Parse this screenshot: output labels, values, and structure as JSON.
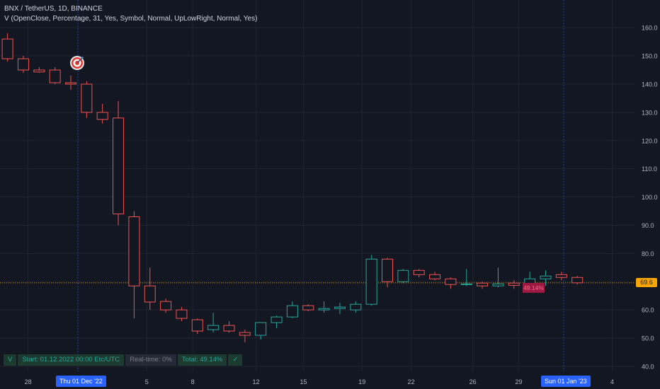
{
  "header": {
    "symbol_line": "BNX / TetherUS, 1D, BINANCE",
    "indicator_line": "V (OpenClose, Percentage, 31, Yes, Symbol, Normal, UpLowRight, Normal, Yes)"
  },
  "colors": {
    "background": "#131722",
    "up": "#26a69a",
    "down": "#ef5350",
    "price_line": "#f7a600",
    "grid": "#1f2430"
  },
  "price_label": "69.6",
  "percent_label": "49.14%",
  "status_bar": {
    "mode": "V",
    "start": "Start: 01.12.2022 00:00 Etc/UTC",
    "realtime": "Real-time: 0%",
    "total": "Total: 49.14%",
    "check": "✓"
  },
  "date_tags": {
    "left": "Thu 01 Dec '22",
    "right": "Sun 01 Jan '23"
  },
  "icons": [
    "target-icon",
    "check-icon"
  ],
  "chart_data": {
    "type": "candlestick",
    "title": "BNX / TetherUS, 1D, BINANCE",
    "ylim": [
      38,
      165
    ],
    "y_ticks": [
      40,
      50,
      60,
      70,
      80,
      90,
      100,
      110,
      120,
      130,
      140,
      150,
      160
    ],
    "x_ticks": [
      "28",
      "5",
      "8",
      "12",
      "15",
      "19",
      "22",
      "26",
      "29",
      "4"
    ],
    "grid": true,
    "series": [
      {
        "name": "BNX / TetherUS",
        "candles": [
          {
            "o": 156,
            "h": 158,
            "l": 148,
            "c": 149
          },
          {
            "o": 149,
            "h": 150,
            "l": 144,
            "c": 145
          },
          {
            "o": 145,
            "h": 146,
            "l": 144,
            "c": 144.3
          },
          {
            "o": 145,
            "h": 146,
            "l": 140,
            "c": 140.5
          },
          {
            "o": 140.5,
            "h": 143,
            "l": 138,
            "c": 140
          },
          {
            "o": 140,
            "h": 141,
            "l": 128,
            "c": 130
          },
          {
            "o": 130,
            "h": 133,
            "l": 126,
            "c": 127.5
          },
          {
            "o": 128,
            "h": 134,
            "l": 90,
            "c": 94
          },
          {
            "o": 93,
            "h": 95,
            "l": 57,
            "c": 68.5
          },
          {
            "o": 68.5,
            "h": 75,
            "l": 60,
            "c": 62.8
          },
          {
            "o": 63,
            "h": 64,
            "l": 59,
            "c": 60
          },
          {
            "o": 60,
            "h": 61,
            "l": 56,
            "c": 57
          },
          {
            "o": 56.5,
            "h": 57,
            "l": 51.5,
            "c": 52.5
          },
          {
            "o": 53,
            "h": 59,
            "l": 52,
            "c": 54.5
          },
          {
            "o": 54.5,
            "h": 56,
            "l": 52,
            "c": 52.5
          },
          {
            "o": 52,
            "h": 53,
            "l": 48.5,
            "c": 51
          },
          {
            "o": 51,
            "h": 55,
            "l": 49.5,
            "c": 55.5
          },
          {
            "o": 55.5,
            "h": 58,
            "l": 53.5,
            "c": 57.5
          },
          {
            "o": 57.5,
            "h": 63,
            "l": 57,
            "c": 61.5
          },
          {
            "o": 61.5,
            "h": 62,
            "l": 59.5,
            "c": 60
          },
          {
            "o": 60,
            "h": 63,
            "l": 59,
            "c": 60.5
          },
          {
            "o": 60.5,
            "h": 62.5,
            "l": 58.5,
            "c": 61
          },
          {
            "o": 60,
            "h": 63,
            "l": 59,
            "c": 62
          },
          {
            "o": 62,
            "h": 79.5,
            "l": 61.5,
            "c": 78
          },
          {
            "o": 78,
            "h": 78.5,
            "l": 68,
            "c": 70
          },
          {
            "o": 70,
            "h": 74.5,
            "l": 69.5,
            "c": 74
          },
          {
            "o": 74,
            "h": 74.5,
            "l": 71.5,
            "c": 72.5
          },
          {
            "o": 72.5,
            "h": 73.5,
            "l": 70.5,
            "c": 71
          },
          {
            "o": 71,
            "h": 71.5,
            "l": 67.5,
            "c": 69
          },
          {
            "o": 69,
            "h": 74.5,
            "l": 68.5,
            "c": 69.2
          },
          {
            "o": 69.5,
            "h": 70,
            "l": 67.5,
            "c": 68.5
          },
          {
            "o": 68.5,
            "h": 75,
            "l": 68,
            "c": 69.2
          },
          {
            "o": 69.5,
            "h": 70.5,
            "l": 67.5,
            "c": 68.7
          },
          {
            "o": 68.5,
            "h": 73.5,
            "l": 68,
            "c": 71
          },
          {
            "o": 71,
            "h": 74,
            "l": 68.5,
            "c": 72
          },
          {
            "o": 72.5,
            "h": 73.5,
            "l": 70.5,
            "c": 71.5
          },
          {
            "o": 71.5,
            "h": 72,
            "l": 69,
            "c": 69.6
          }
        ]
      }
    ]
  }
}
